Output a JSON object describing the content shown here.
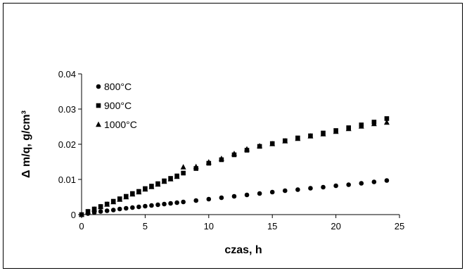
{
  "chart_data": {
    "type": "scatter",
    "title": "",
    "xlabel": "czas, h",
    "ylabel": "Δ m/q, g/cm³",
    "xlim": [
      0,
      25
    ],
    "ylim": [
      0,
      0.04
    ],
    "xticks": [
      "0",
      "5",
      "10",
      "15",
      "20",
      "25"
    ],
    "yticks": [
      "0",
      "0.01",
      "0.02",
      "0.03",
      "0.04"
    ],
    "grid": false,
    "legend_position": "top-left",
    "series": [
      {
        "name": "800°C",
        "marker": "circle",
        "points": [
          [
            0,
            0
          ],
          [
            0.5,
            0.0003
          ],
          [
            1,
            0.0006
          ],
          [
            1.5,
            0.0009
          ],
          [
            2,
            0.0011
          ],
          [
            2.5,
            0.0013
          ],
          [
            3,
            0.0016
          ],
          [
            3.5,
            0.0018
          ],
          [
            4,
            0.002
          ],
          [
            4.5,
            0.0022
          ],
          [
            5,
            0.0024
          ],
          [
            5.5,
            0.0026
          ],
          [
            6,
            0.0028
          ],
          [
            6.5,
            0.003
          ],
          [
            7,
            0.0032
          ],
          [
            7.5,
            0.0034
          ],
          [
            8,
            0.0036
          ],
          [
            9,
            0.004
          ],
          [
            10,
            0.0044
          ],
          [
            11,
            0.0048
          ],
          [
            12,
            0.0052
          ],
          [
            13,
            0.0056
          ],
          [
            14,
            0.006
          ],
          [
            15,
            0.0064
          ],
          [
            16,
            0.0068
          ],
          [
            17,
            0.0071
          ],
          [
            18,
            0.0075
          ],
          [
            19,
            0.0078
          ],
          [
            20,
            0.0082
          ],
          [
            21,
            0.0085
          ],
          [
            22,
            0.0089
          ],
          [
            23,
            0.0093
          ],
          [
            24,
            0.0097
          ]
        ]
      },
      {
        "name": "900°C",
        "marker": "square",
        "points": [
          [
            0,
            0
          ],
          [
            0.5,
            0.0009
          ],
          [
            1,
            0.0016
          ],
          [
            1.5,
            0.0023
          ],
          [
            2,
            0.003
          ],
          [
            2.5,
            0.0038
          ],
          [
            3,
            0.0045
          ],
          [
            3.5,
            0.0052
          ],
          [
            4,
            0.006
          ],
          [
            4.5,
            0.0066
          ],
          [
            5,
            0.0074
          ],
          [
            5.5,
            0.0081
          ],
          [
            6,
            0.0088
          ],
          [
            6.5,
            0.0096
          ],
          [
            7,
            0.0103
          ],
          [
            7.5,
            0.011
          ],
          [
            8,
            0.0118
          ],
          [
            9,
            0.0131
          ],
          [
            10,
            0.0146
          ],
          [
            11,
            0.0156
          ],
          [
            12,
            0.017
          ],
          [
            13,
            0.0183
          ],
          [
            14,
            0.0194
          ],
          [
            15,
            0.0202
          ],
          [
            16,
            0.021
          ],
          [
            17,
            0.0218
          ],
          [
            18,
            0.0224
          ],
          [
            19,
            0.0232
          ],
          [
            20,
            0.0239
          ],
          [
            21,
            0.0247
          ],
          [
            22,
            0.0255
          ],
          [
            23,
            0.0263
          ],
          [
            24,
            0.0273
          ]
        ]
      },
      {
        "name": "1000°C",
        "marker": "triangle",
        "points": [
          [
            0,
            0
          ],
          [
            0.5,
            0.0008
          ],
          [
            1,
            0.0015
          ],
          [
            1.5,
            0.0022
          ],
          [
            2,
            0.0029
          ],
          [
            2.5,
            0.0036
          ],
          [
            3,
            0.0043
          ],
          [
            3.5,
            0.005
          ],
          [
            4,
            0.0058
          ],
          [
            4.5,
            0.0064
          ],
          [
            5,
            0.0072
          ],
          [
            5.5,
            0.0079
          ],
          [
            6,
            0.0086
          ],
          [
            6.5,
            0.0094
          ],
          [
            7,
            0.0101
          ],
          [
            7.5,
            0.0108
          ],
          [
            8,
            0.0135
          ],
          [
            9,
            0.0136
          ],
          [
            10,
            0.0149
          ],
          [
            11,
            0.0159
          ],
          [
            12,
            0.0173
          ],
          [
            13,
            0.0186
          ],
          [
            14,
            0.0195
          ],
          [
            15,
            0.0201
          ],
          [
            16,
            0.0209
          ],
          [
            17,
            0.0216
          ],
          [
            18,
            0.0223
          ],
          [
            19,
            0.0229
          ],
          [
            20,
            0.0236
          ],
          [
            21,
            0.0244
          ],
          [
            22,
            0.0251
          ],
          [
            23,
            0.0258
          ],
          [
            24,
            0.0262
          ]
        ]
      }
    ]
  }
}
